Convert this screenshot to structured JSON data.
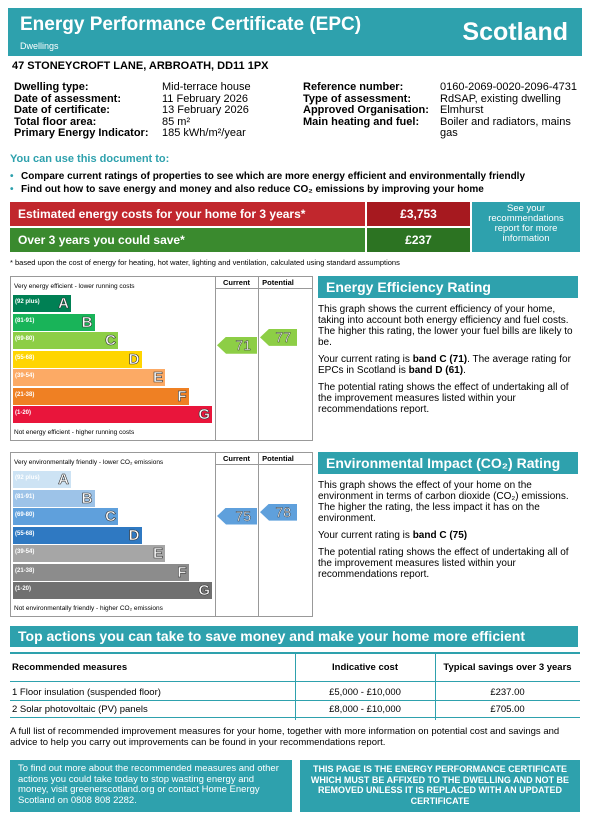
{
  "header": {
    "title": "Energy Performance Certificate (EPC)",
    "subtitle": "Dwellings",
    "region": "Scotland"
  },
  "address": "47 STONEYCROFT LANE, ARBROATH, DD11 1PX",
  "details_left": [
    [
      "Dwelling type:",
      "Mid-terrace house"
    ],
    [
      "Date of assessment:",
      "11 February 2026"
    ],
    [
      "Date of certificate:",
      "13 February 2026"
    ],
    [
      "Total floor area:",
      "85 m²"
    ],
    [
      "Primary Energy Indicator:",
      "185 kWh/m²/year"
    ]
  ],
  "details_right": [
    [
      "Reference number:",
      "0160-2069-0020-2096-4731"
    ],
    [
      "Type of assessment:",
      "RdSAP, existing dwelling"
    ],
    [
      "Approved Organisation:",
      "Elmhurst"
    ],
    [
      "Main heating and fuel:",
      "Boiler and radiators, mains gas"
    ]
  ],
  "uses": {
    "heading": "You can use this document to:",
    "items": [
      "Compare current ratings of properties to see which are more energy efficient and environmentally friendly",
      "Find out how to save energy and money and also reduce CO₂ emissions by improving your home"
    ]
  },
  "costs": {
    "rows": [
      [
        "Estimated energy costs for your home for 3 years*",
        "£3,753"
      ],
      [
        "Over 3 years you could save*",
        "£237"
      ]
    ],
    "info": "See your recommendations report for more information",
    "footnote": "* based upon the cost of energy for heating, hot water, lighting and ventilation, calculated using standard assumptions"
  },
  "energy_efficiency": {
    "top_label": "Very energy efficient - lower running costs",
    "bottom_label": "Not energy efficient - higher running costs",
    "columns": [
      "Current",
      "Potential"
    ],
    "bands": [
      {
        "range": "(92 plus)",
        "letter": "A",
        "color": "#008054"
      },
      {
        "range": "(81-91)",
        "letter": "B",
        "color": "#19b459"
      },
      {
        "range": "(69-80)",
        "letter": "C",
        "color": "#8dce46"
      },
      {
        "range": "(55-68)",
        "letter": "D",
        "color": "#ffd500"
      },
      {
        "range": "(39-54)",
        "letter": "E",
        "color": "#fcaa65"
      },
      {
        "range": "(21-38)",
        "letter": "F",
        "color": "#ef8023"
      },
      {
        "range": "(1-20)",
        "letter": "G",
        "color": "#e9153b"
      }
    ],
    "current": 71,
    "potential": 77,
    "title": "Energy Efficiency Rating",
    "paragraphs": [
      [
        "This graph shows the current efficiency of your home, taking into account both energy efficiency and fuel costs. The higher this rating, the lower your fuel bills are likely to be."
      ],
      [
        "Your current rating is ",
        "band C (71)",
        ". The average rating for EPCs in Scotland is ",
        "band D (61)",
        "."
      ],
      [
        "The potential rating shows the effect of undertaking all of the improvement measures listed within your recommendations report."
      ]
    ]
  },
  "environmental_impact": {
    "top_label": "Very environmentally friendly - lower CO₂ emissions",
    "bottom_label": "Not environmentally friendly - higher CO₂ emissions",
    "columns": [
      "Current",
      "Potential"
    ],
    "bands": [
      {
        "range": "(92 plus)",
        "letter": "A",
        "color": "#cde3f4"
      },
      {
        "range": "(81-91)",
        "letter": "B",
        "color": "#9dc3e8"
      },
      {
        "range": "(69-80)",
        "letter": "C",
        "color": "#5fa0dc"
      },
      {
        "range": "(55-68)",
        "letter": "D",
        "color": "#2f79c2"
      },
      {
        "range": "(39-54)",
        "letter": "E",
        "color": "#a6a6a6"
      },
      {
        "range": "(21-38)",
        "letter": "F",
        "color": "#8c8c8c"
      },
      {
        "range": "(1-20)",
        "letter": "G",
        "color": "#707070"
      }
    ],
    "current": 75,
    "potential": 78,
    "title": "Environmental Impact (CO₂) Rating",
    "paragraphs": [
      [
        "This graph shows the effect of your home on the environment in terms of carbon dioxide (CO₂) emissions. The higher the rating, the less impact it has on the environment."
      ],
      [
        "Your current rating is ",
        "band C (75)"
      ],
      [
        "The potential rating shows the effect of undertaking all of the improvement measures listed within your recommendations report."
      ]
    ]
  },
  "actions": {
    "title": "Top actions you can take to save money and make your home more efficient",
    "headers": [
      "Recommended measures",
      "Indicative cost",
      "Typical savings over 3 years"
    ],
    "rows": [
      [
        "1 Floor insulation (suspended floor)",
        "£5,000 - £10,000",
        "£237.00"
      ],
      [
        "2 Solar photovoltaic (PV) panels",
        "£8,000 - £10,000",
        "£705.00"
      ]
    ],
    "note": "A full list of recommended improvement measures for your home, together with more information on potential cost and savings and advice to help you carry out improvements can be found in your recommendations report."
  },
  "footer": {
    "left": "To find out more about the recommended measures and other actions you could take today to stop wasting energy and money, visit greenerscotland.org or contact Home Energy Scotland on 0808 808 2282.",
    "right": "THIS PAGE IS THE ENERGY PERFORMANCE CERTIFICATE WHICH MUST BE AFFIXED TO THE DWELLING AND NOT BE REMOVED UNLESS IT IS REPLACED WITH AN UPDATED CERTIFICATE"
  }
}
